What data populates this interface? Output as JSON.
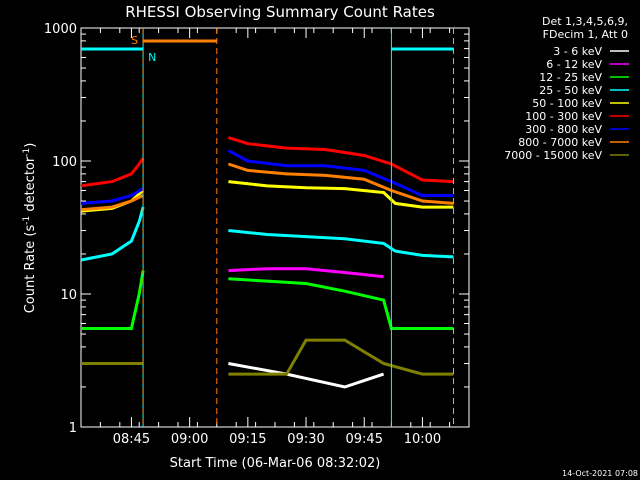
{
  "chart_data": {
    "type": "line",
    "title": "RHESSI Observing Summary Count Rates",
    "xlabel": "Start Time (06-Mar-06 08:32:02)",
    "ylabel_main": "Count Rate (s",
    "ylabel_exp1": "-1",
    "ylabel_mid": " detector",
    "ylabel_exp2": "-1",
    "ylabel_end": ")",
    "yscale": "log",
    "ylim": [
      1,
      1000
    ],
    "xlim_minutes": [
      "08:32",
      "10:12"
    ],
    "x_ticks": [
      "08:45",
      "09:00",
      "09:15",
      "09:30",
      "09:45",
      "10:00"
    ],
    "y_ticks": [
      "1",
      "10",
      "100",
      "1000"
    ],
    "legend_header": [
      "Det 1,3,4,5,6,9,",
      "FDecim 1, Att 0"
    ],
    "footer": "14-Oct-2021 07:08",
    "flag_labels": {
      "saa": "S",
      "night": "N"
    },
    "series": [
      {
        "name": "3 - 6 keV",
        "color": "#ffffff",
        "segments": [
          {
            "t": [
              "08:32",
              "08:45",
              "08:48"
            ],
            "v": [
              3,
              3,
              3
            ]
          },
          {
            "t": [
              "09:10",
              "09:25",
              "09:40",
              "09:50"
            ],
            "v": [
              3,
              2.5,
              2,
              2.5
            ]
          }
        ]
      },
      {
        "name": "6 - 12 keV",
        "color": "#ff00ff",
        "segments": [
          {
            "t": [
              "09:10",
              "09:20",
              "09:30",
              "09:40",
              "09:50"
            ],
            "v": [
              15,
              15.5,
              15.5,
              14.5,
              13.5
            ]
          }
        ]
      },
      {
        "name": "12 - 25 keV",
        "color": "#00ff00",
        "segments": [
          {
            "t": [
              "08:32",
              "08:45",
              "08:47",
              "08:48"
            ],
            "v": [
              5.5,
              5.5,
              10,
              15
            ]
          },
          {
            "t": [
              "09:10",
              "09:20",
              "09:30",
              "09:40",
              "09:50",
              "09:52",
              "10:00",
              "10:08"
            ],
            "v": [
              13,
              12.5,
              12,
              10.5,
              9,
              5.5,
              5.5,
              5.5
            ]
          }
        ]
      },
      {
        "name": "25 - 50 keV",
        "color": "#00ffff",
        "segments": [
          {
            "t": [
              "08:32",
              "08:40",
              "08:45",
              "08:47",
              "08:48"
            ],
            "v": [
              18,
              20,
              25,
              35,
              45
            ]
          },
          {
            "t": [
              "09:10",
              "09:20",
              "09:30",
              "09:40",
              "09:50",
              "09:53",
              "10:00",
              "10:08"
            ],
            "v": [
              30,
              28,
              27,
              26,
              24,
              21,
              19.5,
              19
            ]
          }
        ]
      },
      {
        "name": "50 - 100 keV",
        "color": "#ffff00",
        "segments": [
          {
            "t": [
              "08:32",
              "08:40",
              "08:45",
              "08:48"
            ],
            "v": [
              42,
              44,
              50,
              60
            ]
          },
          {
            "t": [
              "09:10",
              "09:20",
              "09:30",
              "09:40",
              "09:50",
              "09:53",
              "10:00",
              "10:08"
            ],
            "v": [
              70,
              65,
              63,
              62,
              58,
              48,
              45,
              45
            ]
          }
        ]
      },
      {
        "name": "100 - 300 keV",
        "color": "#ff0000",
        "segments": [
          {
            "t": [
              "08:32",
              "08:40",
              "08:45",
              "08:47",
              "08:48"
            ],
            "v": [
              65,
              70,
              80,
              95,
              105
            ]
          },
          {
            "t": [
              "09:10",
              "09:15",
              "09:25",
              "09:35",
              "09:45",
              "09:52",
              "10:00",
              "10:08"
            ],
            "v": [
              150,
              135,
              125,
              122,
              110,
              95,
              72,
              70
            ]
          }
        ]
      },
      {
        "name": "300 - 800 keV",
        "color": "#0000ff",
        "segments": [
          {
            "t": [
              "08:32",
              "08:40",
              "08:45",
              "08:48"
            ],
            "v": [
              48,
              50,
              55,
              62
            ]
          },
          {
            "t": [
              "09:10",
              "09:15",
              "09:25",
              "09:35",
              "09:45",
              "09:52",
              "10:00",
              "10:08"
            ],
            "v": [
              120,
              100,
              92,
              92,
              85,
              70,
              55,
              55
            ]
          }
        ]
      },
      {
        "name": "800 - 7000 keV",
        "color": "#ff8000",
        "segments": [
          {
            "t": [
              "08:32",
              "08:40",
              "08:45",
              "08:48"
            ],
            "v": [
              43,
              45,
              50,
              55
            ]
          },
          {
            "t": [
              "09:10",
              "09:15",
              "09:25",
              "09:35",
              "09:45",
              "09:52",
              "10:00",
              "10:08"
            ],
            "v": [
              95,
              85,
              80,
              78,
              73,
              60,
              50,
              48
            ]
          }
        ]
      },
      {
        "name": "7000 - 15000 keV",
        "color": "#808000",
        "segments": [
          {
            "t": [
              "08:32",
              "08:45",
              "08:48"
            ],
            "v": [
              3,
              3,
              3
            ]
          },
          {
            "t": [
              "09:10",
              "09:25",
              "09:30",
              "09:40",
              "09:50",
              "10:00",
              "10:08"
            ],
            "v": [
              2.5,
              2.5,
              4.5,
              4.5,
              3,
              2.5,
              2.5
            ]
          }
        ]
      }
    ],
    "saa_bar": {
      "label": "S",
      "t": [
        "08:48",
        "09:07"
      ],
      "color": "#ff8000"
    },
    "night_bars": [
      {
        "t": [
          "08:32",
          "08:48"
        ],
        "color": "#00ffff"
      },
      {
        "t": [
          "09:52",
          "10:08"
        ],
        "color": "#00ffff"
      }
    ],
    "vlines": [
      {
        "t": "08:48",
        "color": "#00ffff",
        "style": "solid"
      },
      {
        "t": "08:48",
        "color": "#ff8000",
        "style": "dashed"
      },
      {
        "t": "09:07",
        "color": "#ff8000",
        "style": "dashed"
      },
      {
        "t": "09:52",
        "color": "#00ffff",
        "style": "solid"
      },
      {
        "t": "10:08",
        "color": "#00ffff",
        "style": "dashed"
      }
    ]
  }
}
